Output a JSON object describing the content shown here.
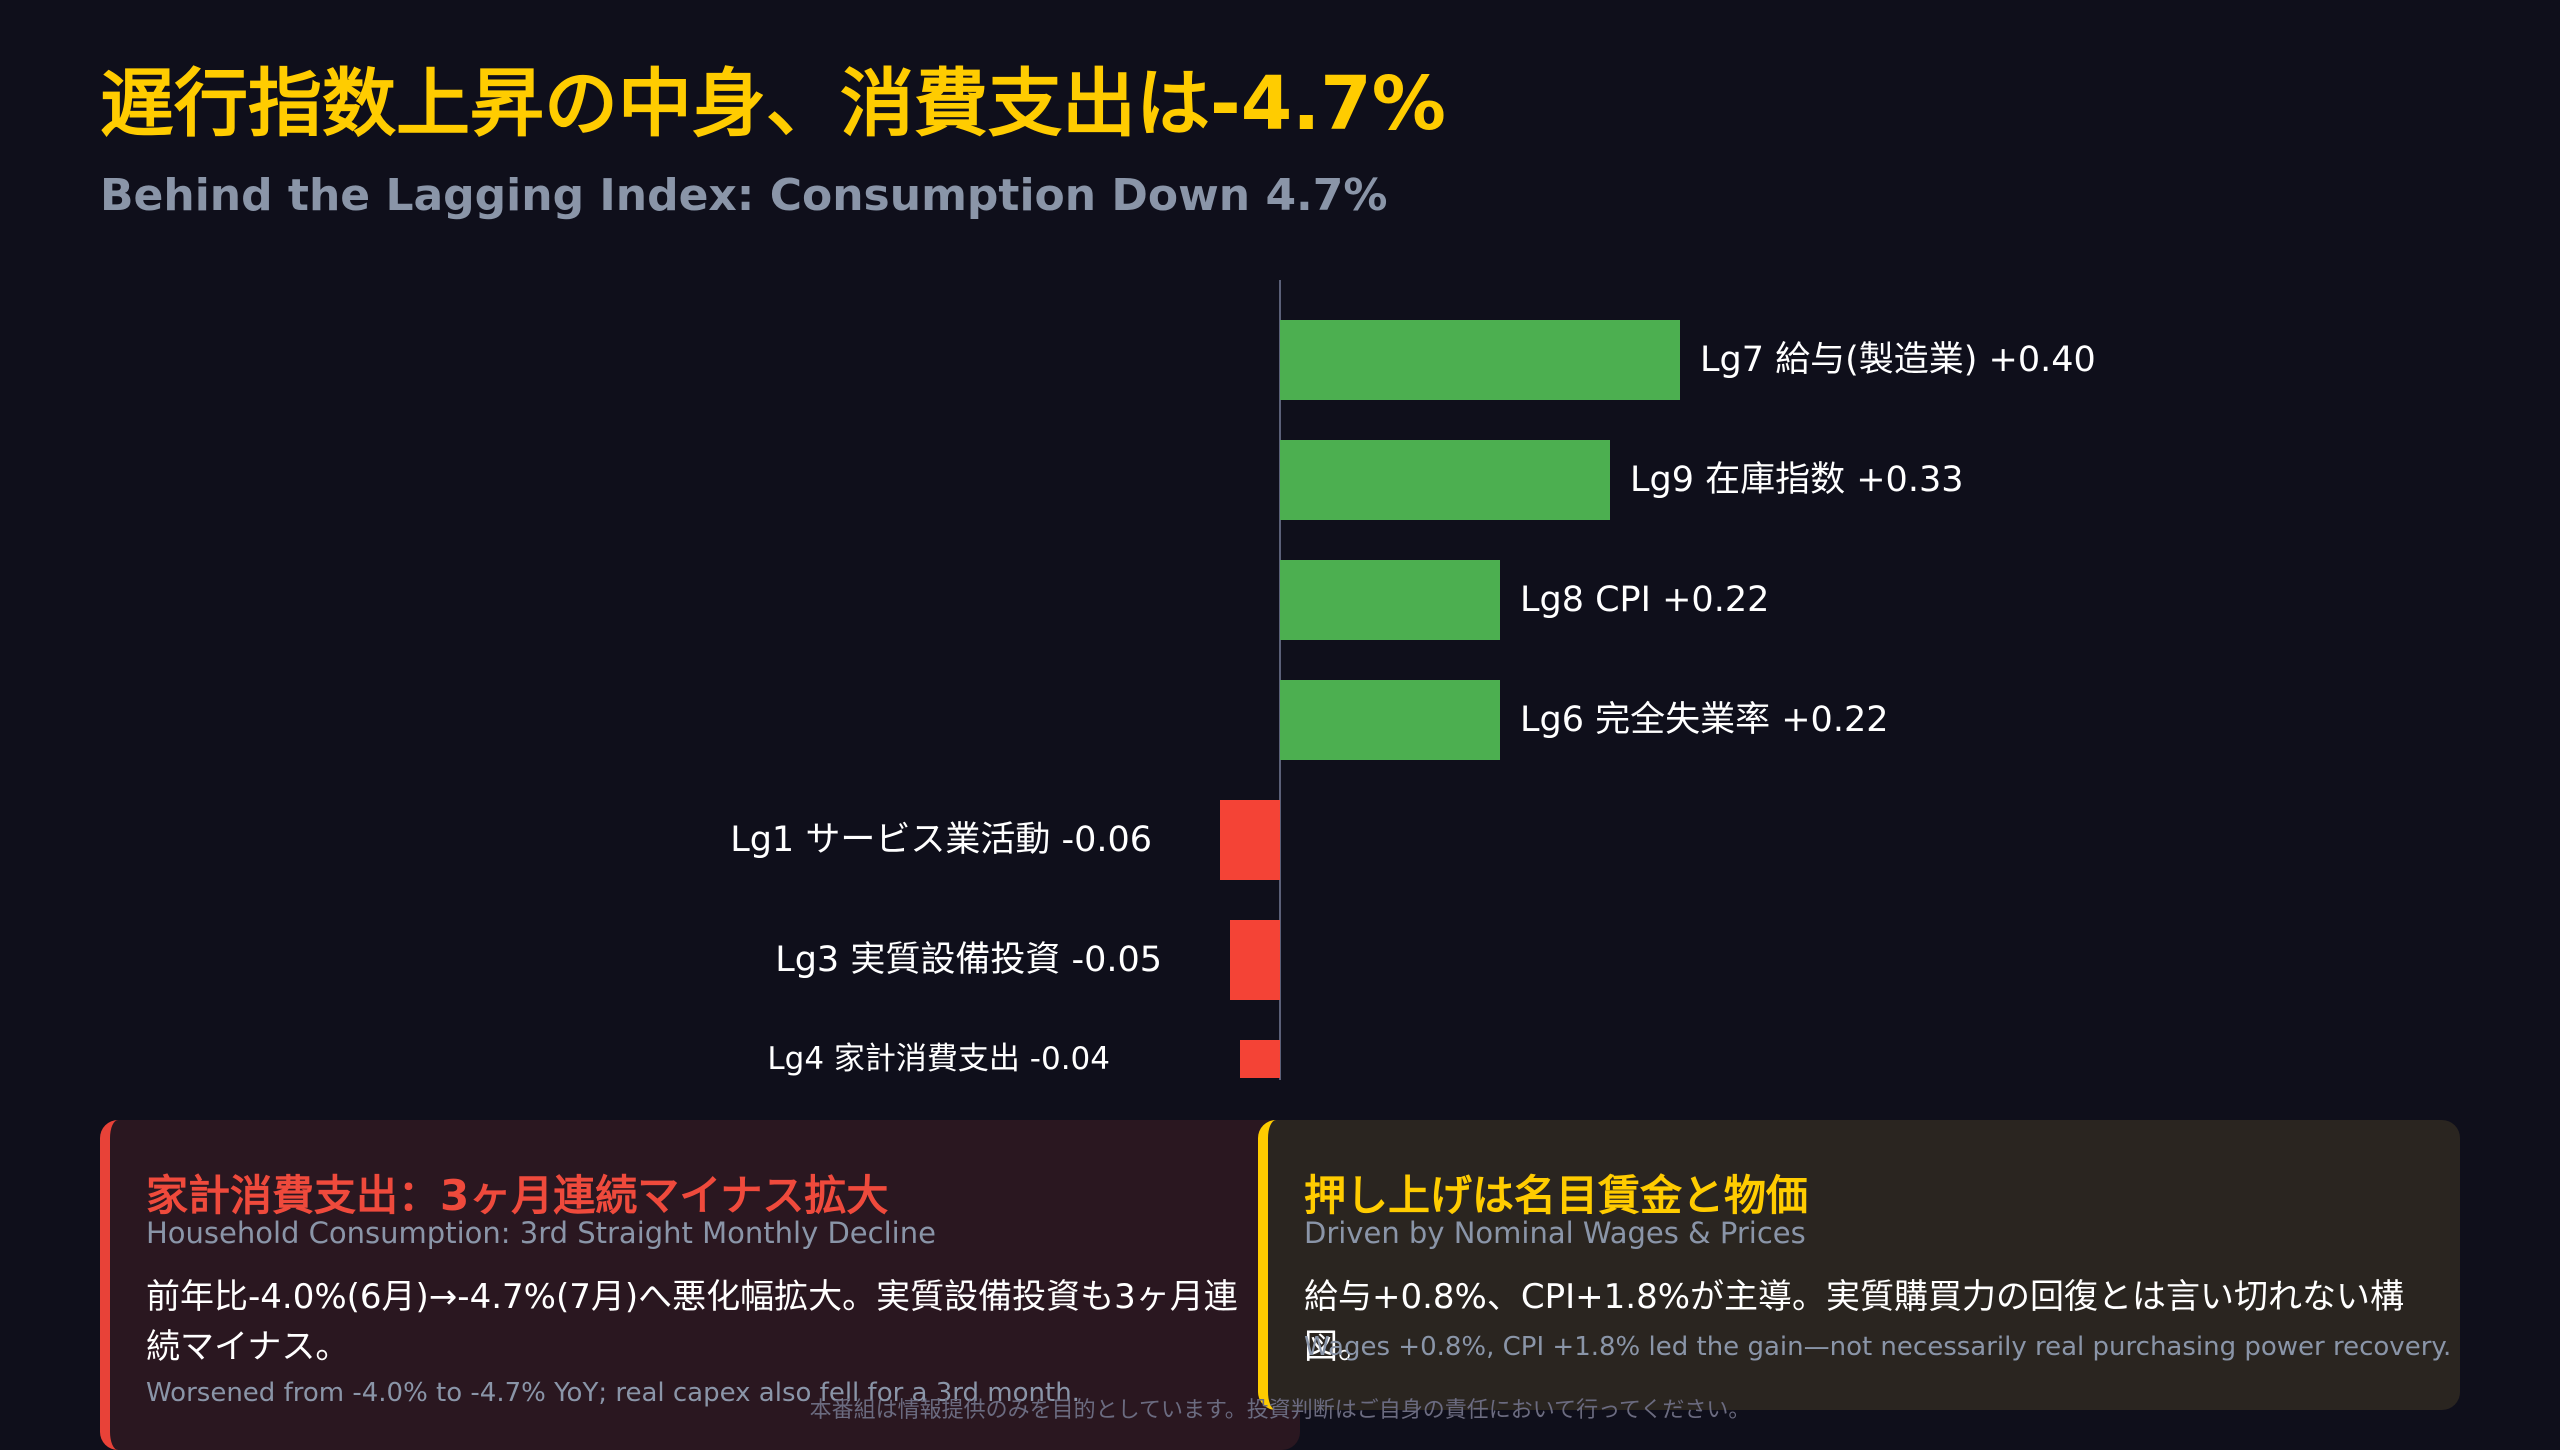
{
  "header": {
    "title": "遅行指数上昇の中身、消費支出は-4.7%",
    "subtitle": "Behind the Lagging Index: Consumption Down 4.7%"
  },
  "chart_data": {
    "type": "bar",
    "orientation": "horizontal",
    "categories": [
      "Lg7 給与(製造業)",
      "Lg9 在庫指数",
      "Lg8 CPI",
      "Lg6 完全失業率",
      "Lg1 サービス業活動",
      "Lg3 実質設備投資",
      "Lg4 家計消費支出"
    ],
    "values": [
      0.4,
      0.33,
      0.22,
      0.22,
      -0.06,
      -0.05,
      -0.04
    ],
    "labels": [
      "Lg7 給与(製造業) +0.40",
      "Lg9 在庫指数 +0.33",
      "Lg8 CPI +0.22",
      "Lg6 完全失業率 +0.22",
      "Lg1 サービス業活動 -0.06",
      "Lg3 実質設備投資 -0.05",
      "Lg4 家計消費支出 -0.04"
    ],
    "colors": {
      "positive": "#4caf50",
      "negative": "#f44336",
      "axis": "#5a5f78"
    },
    "grid": false,
    "legend": "none"
  },
  "panels": {
    "left": {
      "heading": "家計消費支出：3ヶ月連続マイナス拡大",
      "subheading": "Household Consumption: 3rd Straight Monthly Decline",
      "text": "前年比-4.0%(6月)→-4.7%(7月)へ悪化幅拡大。実質設備投資も3ヶ月連続マイナス。",
      "note": "Worsened from -4.0% to -4.7% YoY; real capex also fell for a 3rd month.",
      "accent": "#f44336"
    },
    "right": {
      "heading": "押し上げは名目賃金と物価",
      "subheading": "Driven by Nominal Wages & Prices",
      "text": "給与+0.8%、CPI+1.8%が主導。実質購買力の回復とは言い切れない構図。",
      "note": "Wages +0.8%, CPI +1.8% led the gain—not necessarily real purchasing power recovery.",
      "accent": "#ffcc00"
    }
  },
  "footer": {
    "disclaimer": "本番組は情報提供のみを目的としています。投資判断はご自身の責任において行ってください。"
  }
}
